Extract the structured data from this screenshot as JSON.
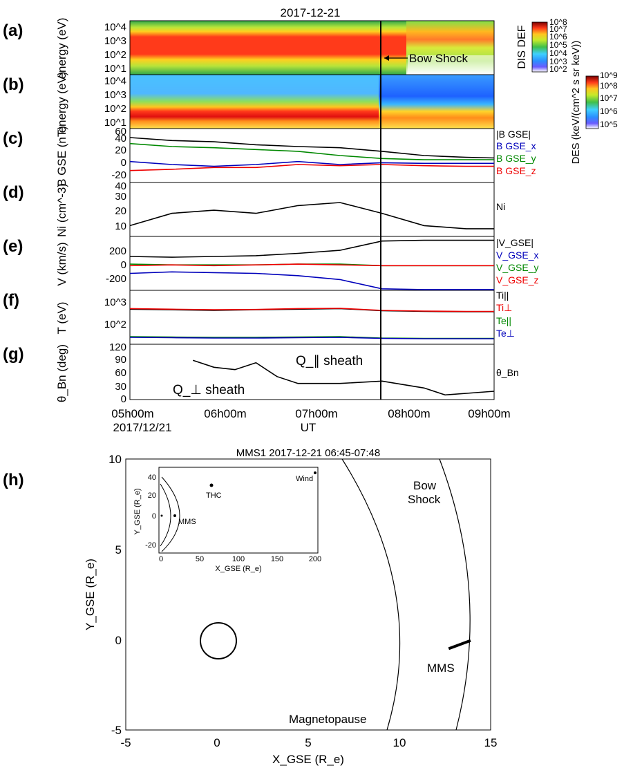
{
  "top": {
    "title": "2017-12-21",
    "x_ticks": [
      "05h00m",
      "06h00m",
      "07h00m",
      "08h00m",
      "09h00m"
    ],
    "date_label": "2017/12/21",
    "x_label": "UT",
    "panels": [
      {
        "letter": "(a)",
        "ylabel": "energy (eV)",
        "ticks": [
          "10^1",
          "10^2",
          "10^3",
          "10^4"
        ]
      },
      {
        "letter": "(b)",
        "ylabel": "energy (eV)",
        "ticks": [
          "10^1",
          "10^2",
          "10^3",
          "10^4"
        ]
      },
      {
        "letter": "(c)",
        "ylabel": "B GSE  (nT)",
        "ticks": [
          "-20",
          "0",
          "20",
          "40",
          "60"
        ]
      },
      {
        "letter": "(d)",
        "ylabel": "Ni (cm^-3)",
        "ticks": [
          "10",
          "20",
          "30",
          "40"
        ]
      },
      {
        "letter": "(e)",
        "ylabel": "V (km/s)",
        "ticks": [
          "-200",
          "0",
          "200"
        ]
      },
      {
        "letter": "(f)",
        "ylabel": "T (eV)",
        "ticks": [
          "10^2",
          "10^3"
        ]
      },
      {
        "letter": "(g)",
        "ylabel": "θ_Bn (deg)",
        "ticks": [
          "0",
          "30",
          "60",
          "90",
          "120"
        ]
      }
    ],
    "colorbar_dis": {
      "label": "DIS DEF",
      "ticks": [
        "10^2",
        "10^3",
        "10^4",
        "10^5",
        "10^6",
        "10^7",
        "10^8"
      ]
    },
    "colorbar_des": {
      "label": "DES (keV/(cm^2 s sr keV))",
      "ticks": [
        "10^5",
        "10^6",
        "10^7",
        "10^8",
        "10^9"
      ]
    },
    "bow_shock_label": "Bow Shock",
    "qpar_label": "Q_∥ sheath",
    "qperp_label": "Q_⊥ sheath",
    "legend_c": [
      "|B GSE|",
      "B GSE_x",
      "B GSE_y",
      "B GSE_z"
    ],
    "legend_d": [
      "Ni"
    ],
    "legend_e": [
      "|V_GSE|",
      "V_GSE_x",
      "V_GSE_y",
      "V_GSE_z"
    ],
    "legend_f": [
      "Ti||",
      "Ti⊥",
      "Te||",
      "Te⊥"
    ],
    "legend_g": [
      "θ_Bn"
    ]
  },
  "bottom": {
    "letter": "(h)",
    "title": "MMS1 2017-12-21 06:45-07:48",
    "x_ticks": [
      "-5",
      "0",
      "5",
      "10",
      "15"
    ],
    "y_ticks": [
      "-5",
      "0",
      "5",
      "10"
    ],
    "x_label": "X_GSE (R_e)",
    "y_label": "Y_GSE (R_e)",
    "magnetopause_label": "Magnetopause",
    "bowshock_label": [
      "Bow",
      "Shock"
    ],
    "mms_label": "MMS",
    "inset": {
      "x_ticks": [
        "0",
        "50",
        "100",
        "150",
        "200"
      ],
      "y_ticks": [
        "-20",
        "0",
        "20",
        "40"
      ],
      "x_label": "X_GSE (R_e)",
      "y_label": "Y_GSE (R_e)",
      "labels": {
        "thc": "THC",
        "wind": "Wind",
        "mms": "MMS"
      }
    }
  },
  "colors": {
    "total": "#000000",
    "x": "#0000bb",
    "y": "#008800",
    "z": "#ee0000"
  },
  "chart_data": [
    {
      "type": "line",
      "id": "c",
      "xlabel": "UT",
      "x": [
        "05:00",
        "05:30",
        "06:00",
        "06:30",
        "07:00",
        "07:30",
        "08:00",
        "08:30",
        "09:00",
        "09:20"
      ],
      "ylim": [
        -30,
        60
      ],
      "series": [
        {
          "name": "|B GSE|",
          "values": [
            45,
            40,
            38,
            33,
            30,
            28,
            22,
            15,
            12,
            11
          ]
        },
        {
          "name": "B GSE_x",
          "values": [
            5,
            0,
            -3,
            0,
            5,
            0,
            3,
            2,
            2,
            2
          ]
        },
        {
          "name": "B GSE_y",
          "values": [
            35,
            30,
            28,
            25,
            22,
            15,
            10,
            8,
            8,
            8
          ]
        },
        {
          "name": "B GSE_z",
          "values": [
            -10,
            -8,
            -5,
            -5,
            0,
            -2,
            0,
            -2,
            -3,
            -3
          ]
        }
      ]
    },
    {
      "type": "line",
      "id": "d",
      "x": [
        "05:00",
        "05:30",
        "06:00",
        "06:30",
        "07:00",
        "07:30",
        "08:00",
        "08:30",
        "09:00",
        "09:20"
      ],
      "ylim": [
        5,
        40
      ],
      "series": [
        {
          "name": "Ni",
          "values": [
            12,
            20,
            22,
            20,
            25,
            27,
            20,
            12,
            10,
            10
          ]
        }
      ]
    },
    {
      "type": "line",
      "id": "e",
      "x": [
        "05:00",
        "05:30",
        "06:00",
        "06:30",
        "07:00",
        "07:30",
        "08:00",
        "08:30",
        "09:00",
        "09:20"
      ],
      "ylim": [
        -320,
        380
      ],
      "series": [
        {
          "name": "|V_GSE|",
          "values": [
            120,
            110,
            120,
            130,
            160,
            200,
            320,
            330,
            330,
            330
          ]
        },
        {
          "name": "V_GSE_x",
          "values": [
            -100,
            -80,
            -90,
            -100,
            -130,
            -180,
            -300,
            -310,
            -310,
            -310
          ]
        },
        {
          "name": "V_GSE_y",
          "values": [
            20,
            10,
            10,
            10,
            20,
            20,
            0,
            0,
            0,
            0
          ]
        },
        {
          "name": "V_GSE_z",
          "values": [
            0,
            10,
            0,
            10,
            20,
            10,
            0,
            0,
            0,
            0
          ]
        }
      ]
    },
    {
      "type": "line",
      "id": "f",
      "x": [
        "05:00",
        "05:30",
        "06:00",
        "06:30",
        "07:00",
        "07:30",
        "08:00",
        "08:30",
        "09:00",
        "09:20"
      ],
      "yscale": "log",
      "ylim": [
        20,
        2000
      ],
      "series": [
        {
          "name": "Ti||",
          "values": [
            400,
            380,
            360,
            380,
            400,
            420,
            350,
            330,
            320,
            320
          ]
        },
        {
          "name": "Ti⊥",
          "values": [
            420,
            400,
            380,
            390,
            420,
            430,
            360,
            340,
            330,
            330
          ]
        },
        {
          "name": "Te||",
          "values": [
            38,
            37,
            36,
            36,
            37,
            38,
            34,
            33,
            33,
            33
          ]
        },
        {
          "name": "Te⊥",
          "values": [
            36,
            35,
            34,
            34,
            35,
            36,
            33,
            32,
            32,
            32
          ]
        }
      ]
    },
    {
      "type": "line",
      "id": "g",
      "x": [
        "05:45",
        "06:00",
        "06:15",
        "06:30",
        "06:45",
        "07:00",
        "07:30",
        "08:00",
        "08:30",
        "08:45",
        "09:20"
      ],
      "ylim": [
        0,
        120
      ],
      "series": [
        {
          "name": "θ_Bn",
          "values": [
            85,
            70,
            65,
            80,
            50,
            35,
            35,
            40,
            25,
            10,
            18
          ]
        }
      ]
    },
    {
      "type": "scatter",
      "id": "h",
      "title": "MMS1 2017-12-21 06:45-07:48",
      "xlabel": "X_GSE (R_e)",
      "ylabel": "Y_GSE (R_e)",
      "xlim": [
        -5,
        15
      ],
      "ylim": [
        -5,
        10
      ],
      "mms_track": {
        "x": [
          12.7,
          13.9
        ],
        "y": [
          -0.5,
          -0.05
        ]
      }
    }
  ]
}
